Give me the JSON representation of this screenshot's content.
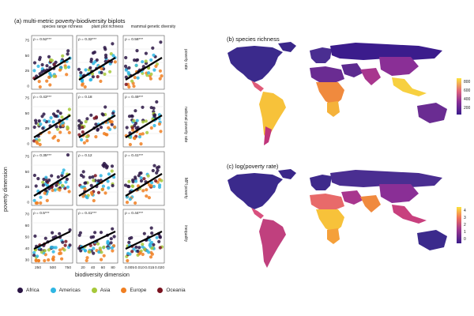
{
  "panel_a": {
    "title": "(a) multi-metric poverty-biodiversity biplots",
    "col_titles": [
      "species range richness",
      "plant plot richness",
      "mammal genetic diversity"
    ],
    "row_titles": [
      "poverty rate",
      "national poverty rate",
      "MPI poverty",
      "inequality"
    ],
    "ylabel": "poverty dimension",
    "xlabel": "biodiversity dimension",
    "rho": [
      [
        "ρ = 0.52***",
        "ρ = 0.32***",
        "ρ = 0.58***"
      ],
      [
        "ρ = 0.43***",
        "ρ = 0.18",
        "ρ = 0.49***"
      ],
      [
        "ρ = 0.35***",
        "ρ = 0.12",
        "ρ = 0.41***"
      ],
      [
        "ρ = 0.5***",
        "ρ = 0.41***",
        "ρ = 0.44***"
      ]
    ],
    "y_ticks_poverty": [
      "0",
      "25",
      "50",
      "75"
    ],
    "y_ticks_inequality": [
      "30",
      "40",
      "50",
      "60",
      "70"
    ],
    "x_ticks": [
      [
        "250",
        "500",
        "750"
      ],
      [
        "20",
        "40",
        "60",
        "80"
      ],
      [
        "0.005",
        "0.010",
        "0.015",
        "0.020"
      ]
    ],
    "legend": [
      {
        "label": "Africa",
        "color": "#2a1544"
      },
      {
        "label": "Americas",
        "color": "#2fb6e3"
      },
      {
        "label": "Asia",
        "color": "#a6c83a"
      },
      {
        "label": "Europe",
        "color": "#f07f22"
      },
      {
        "label": "Oceania",
        "color": "#7a1320"
      }
    ]
  },
  "panel_b": {
    "title": "(b) species richness",
    "scale_ticks": [
      "800",
      "600",
      "400",
      "200"
    ]
  },
  "panel_c": {
    "title": "(c) log(poverty rate)",
    "scale_ticks": [
      "4",
      "3",
      "2",
      "1",
      "0"
    ]
  }
}
